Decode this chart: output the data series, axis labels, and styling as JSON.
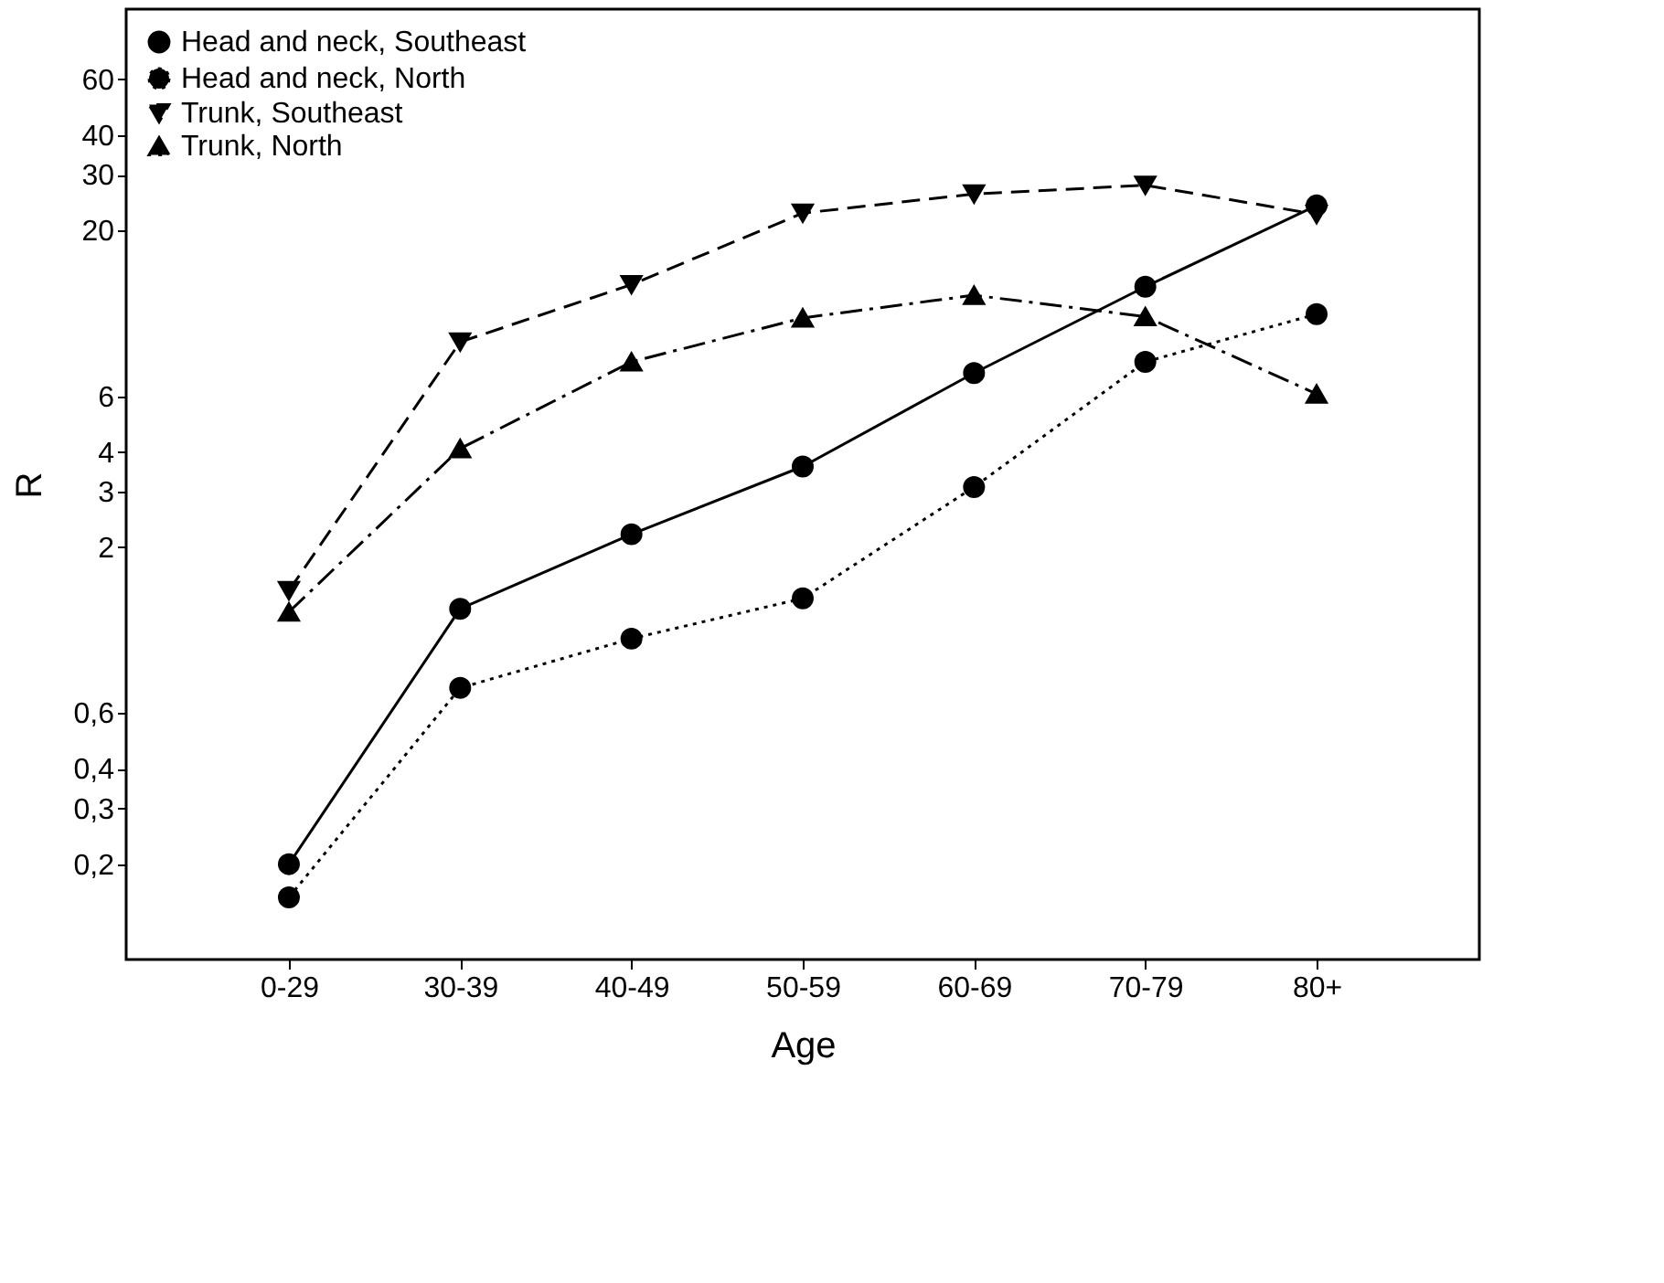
{
  "chart_data": {
    "type": "line",
    "xlabel": "Age",
    "ylabel": "R",
    "categories": [
      "0-29",
      "30-39",
      "40-49",
      "50-59",
      "60-69",
      "70-79",
      "80+"
    ],
    "log": true,
    "ylim": [
      0.1,
      100
    ],
    "yticks": [
      {
        "value": 0.2,
        "label": "0,2"
      },
      {
        "value": 0.3,
        "label": "0,3"
      },
      {
        "value": 0.4,
        "label": "0,4"
      },
      {
        "value": 0.6,
        "label": "0,6"
      },
      2,
      3,
      4,
      6,
      20,
      30,
      40,
      60
    ],
    "grid": false,
    "legend": "top left",
    "series": [
      {
        "name": "Head and neck, Southeast",
        "color": "#000000",
        "marker": "circle",
        "line_style": "solid",
        "values": [
          0.2,
          1.28,
          2.2,
          3.6,
          7.1,
          13.3,
          24
        ]
      },
      {
        "name": "Head and neck, North",
        "color": "#000000",
        "marker": "circle",
        "line_style": "dotted",
        "values": [
          0.157,
          0.72,
          1.03,
          1.38,
          3.1,
          7.7,
          10.9
        ]
      },
      {
        "name": "Trunk, Southeast",
        "color": "#000000",
        "marker": "triangle-down",
        "line_style": "dashed",
        "values": [
          1.46,
          8.9,
          13.5,
          22.7,
          26.1,
          27.8,
          22.5
        ]
      },
      {
        "name": "Trunk, North",
        "color": "#000000",
        "marker": "triangle",
        "line_style": "dashdot",
        "values": [
          1.25,
          4.1,
          7.7,
          10.6,
          12.5,
          10.7,
          6.1
        ]
      }
    ]
  }
}
